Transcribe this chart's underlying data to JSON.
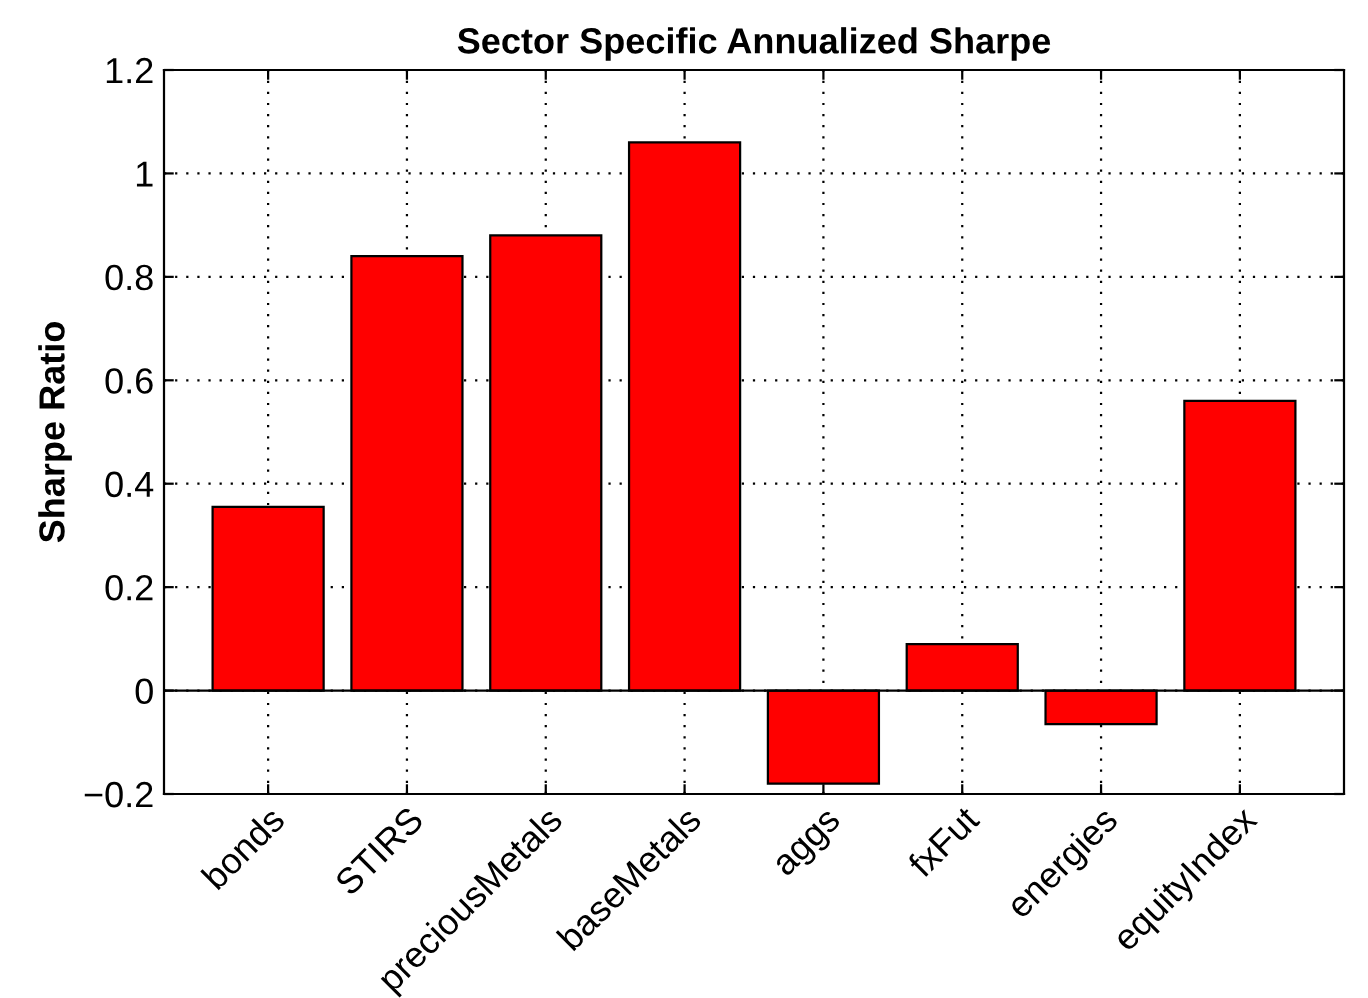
{
  "chart_data": {
    "type": "bar",
    "title": "Sector Specific Annualized Sharpe",
    "ylabel": "Sharpe Ratio",
    "categories": [
      "bonds",
      "STIRS",
      "preciousMetals",
      "baseMetals",
      "aggs",
      "fxFut",
      "energies",
      "equityIndex"
    ],
    "values": [
      0.355,
      0.84,
      0.88,
      1.06,
      -0.18,
      0.09,
      -0.065,
      0.56
    ],
    "color": "#ff0000",
    "ylim": [
      -0.2,
      1.2
    ],
    "yticks": [
      {
        "value": -0.2,
        "label": "−0.2"
      },
      0,
      0.2,
      0.4,
      0.6,
      0.8,
      1,
      1.2
    ],
    "grid": true
  }
}
